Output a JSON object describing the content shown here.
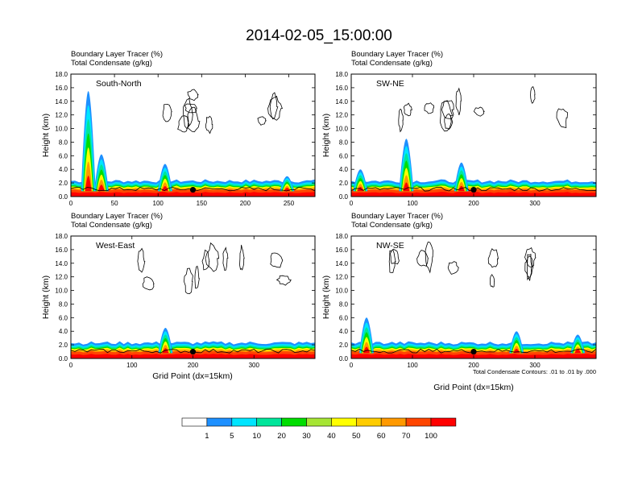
{
  "title": "2014-02-05_15:00:00",
  "header": {
    "line1": "Boundary Layer Tracer   (%)",
    "line2": "Total Condensate   (g/kg)"
  },
  "ylabel": "Height (km)",
  "xlabel": "Grid Point (dx=15km)",
  "contour_note": "Total Condensate Contours: .01 to .01 by .000",
  "chart_data": [
    {
      "type": "heatmap",
      "panel_label": "South-North",
      "xlim": [
        0,
        280
      ],
      "ylim": [
        0,
        18
      ],
      "x_ticks": [
        0,
        50,
        100,
        150,
        200,
        250
      ],
      "y_ticks": [
        "0.0",
        "2.0",
        "4.0",
        "6.0",
        "8.0",
        "10.0",
        "12.0",
        "14.0",
        "16.0",
        "18.0"
      ],
      "marker": {
        "x": 140,
        "y": 1.0
      },
      "tracer_plumes": [
        {
          "x": 35,
          "top": 6.2
        },
        {
          "x": 20,
          "top": 15.5
        },
        {
          "x": 108,
          "top": 4.8
        },
        {
          "x": 248,
          "top": 3.0
        }
      ]
    },
    {
      "type": "heatmap",
      "panel_label": "SW-NE",
      "xlim": [
        0,
        400
      ],
      "ylim": [
        0,
        18
      ],
      "x_ticks": [
        0,
        100,
        200,
        300
      ],
      "y_ticks": [
        "0.0",
        "2.0",
        "4.0",
        "6.0",
        "8.0",
        "10.0",
        "12.0",
        "14.0",
        "16.0",
        "18.0"
      ],
      "marker": {
        "x": 200,
        "y": 1.0
      },
      "tracer_plumes": [
        {
          "x": 90,
          "top": 8.5
        },
        {
          "x": 180,
          "top": 5.0
        },
        {
          "x": 15,
          "top": 4.0
        }
      ]
    },
    {
      "type": "heatmap",
      "panel_label": "West-East",
      "xlim": [
        0,
        400
      ],
      "ylim": [
        0,
        18
      ],
      "x_ticks": [
        0,
        100,
        200,
        300
      ],
      "y_ticks": [
        "0.0",
        "2.0",
        "4.0",
        "6.0",
        "8.0",
        "10.0",
        "12.0",
        "14.0",
        "16.0",
        "18.0"
      ],
      "marker": {
        "x": 200,
        "y": 1.0
      },
      "tracer_plumes": [
        {
          "x": 155,
          "top": 4.5
        }
      ]
    },
    {
      "type": "heatmap",
      "panel_label": "NW-SE",
      "xlim": [
        0,
        400
      ],
      "ylim": [
        0,
        18
      ],
      "x_ticks": [
        0,
        100,
        200,
        300
      ],
      "y_ticks": [
        "0.0",
        "2.0",
        "4.0",
        "6.0",
        "8.0",
        "10.0",
        "12.0",
        "14.0",
        "16.0",
        "18.0"
      ],
      "marker": {
        "x": 200,
        "y": 1.0
      },
      "tracer_plumes": [
        {
          "x": 25,
          "top": 6.0
        },
        {
          "x": 270,
          "top": 4.0
        },
        {
          "x": 370,
          "top": 3.5
        }
      ]
    }
  ],
  "colorbar": {
    "labels": [
      "1",
      "5",
      "10",
      "20",
      "30",
      "40",
      "50",
      "60",
      "70",
      "100"
    ],
    "colors": [
      "#ffffff",
      "#1e90ff",
      "#00e5ff",
      "#00e59a",
      "#00dd00",
      "#a6e534",
      "#ffff00",
      "#ffcc00",
      "#ff9900",
      "#ff4500",
      "#ff0000"
    ]
  }
}
